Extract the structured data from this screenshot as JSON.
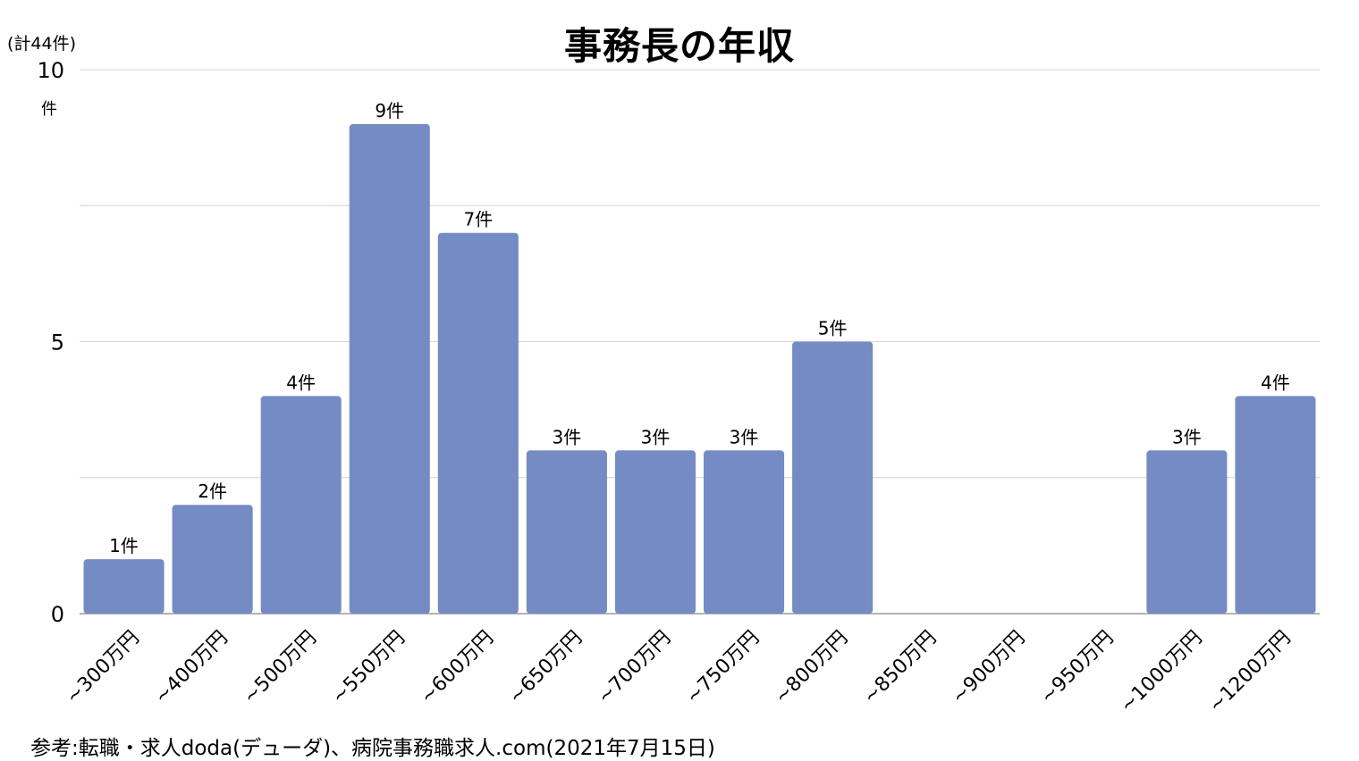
{
  "chart_data": {
    "type": "bar",
    "title": "事務長の年収",
    "total_note": "(計44件)",
    "unit_label": "件",
    "categories": [
      "~300万円",
      "~400万円",
      "~500万円",
      "~550万円",
      "~600万円",
      "~650万円",
      "~700万円",
      "~750万円",
      "~800万円",
      "~850万円",
      "~900万円",
      "~950万円",
      "~1000万円",
      "~1200万円"
    ],
    "values": [
      1,
      2,
      4,
      9,
      7,
      3,
      3,
      3,
      5,
      0,
      0,
      0,
      3,
      4
    ],
    "data_labels": [
      "1件",
      "2件",
      "4件",
      "9件",
      "7件",
      "3件",
      "3件",
      "3件",
      "5件",
      "",
      "",
      "",
      "3件",
      "4件"
    ],
    "ylim": [
      0,
      10
    ],
    "yticks": [
      0,
      5,
      10
    ],
    "gridlines": [
      0,
      2.5,
      5,
      7.5,
      10
    ],
    "bar_color": "#758bc4",
    "grid": true
  },
  "source": "参考:転職・求人doda(デューダ)、病院事務職求人.com(2021年7月15日)"
}
